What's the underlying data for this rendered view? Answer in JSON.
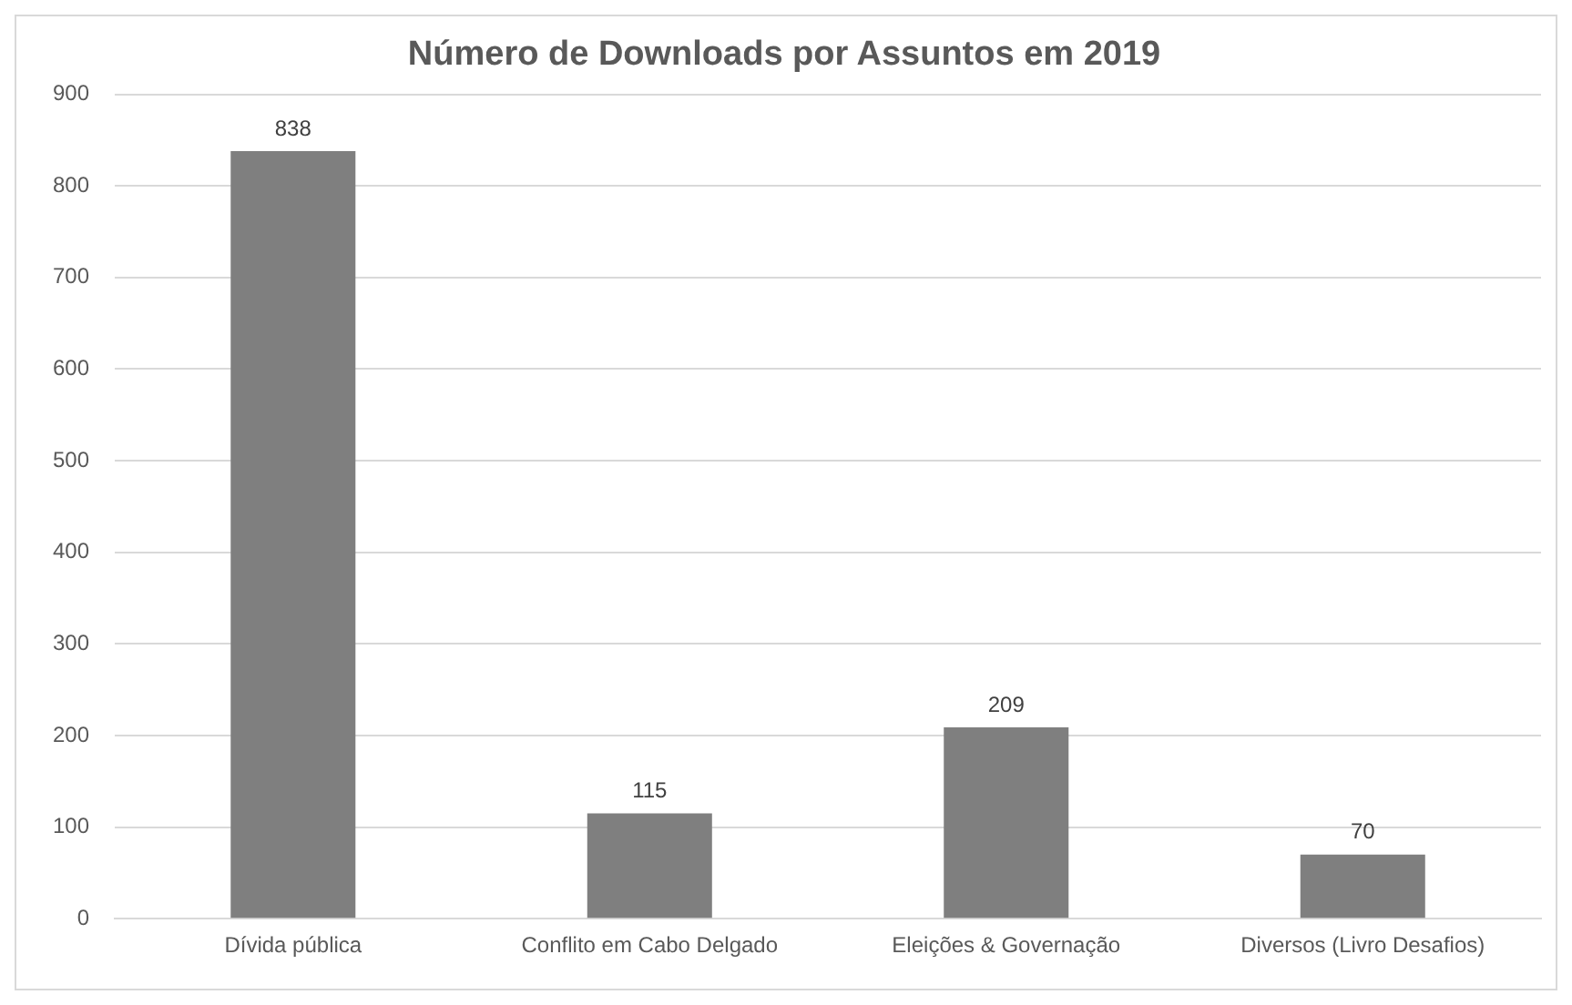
{
  "chart_data": {
    "type": "bar",
    "title": "Número de Downloads por Assuntos em 2019",
    "categories": [
      "Dívida pública",
      "Conflito em Cabo Delgado",
      "Eleições & Governação",
      "Diversos (Livro Desafios)"
    ],
    "values": [
      838,
      115,
      209,
      70
    ],
    "color": "#7f7f7f",
    "ylim": [
      0,
      900
    ],
    "yticks": [
      0,
      100,
      200,
      300,
      400,
      500,
      600,
      700,
      800,
      900
    ],
    "grid": "y",
    "data_labels": true
  }
}
